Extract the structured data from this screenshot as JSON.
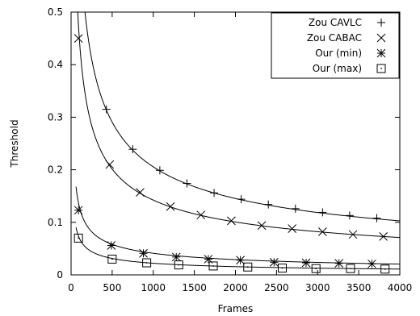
{
  "chart_data": {
    "type": "line",
    "xlabel": "Frames",
    "ylabel": "Threshold",
    "xlim": [
      0,
      4000
    ],
    "ylim": [
      0,
      0.5
    ],
    "x_ticks": [
      "0",
      "500",
      "1000",
      "1500",
      "2000",
      "2500",
      "3000",
      "3500",
      "4000"
    ],
    "y_ticks": [
      "0",
      "0.1",
      "0.2",
      "0.3",
      "0.4",
      "0.5"
    ],
    "x_tick_values": [
      0,
      500,
      1000,
      1500,
      2000,
      2500,
      3000,
      3500,
      4000
    ],
    "y_tick_values": [
      0,
      0.1,
      0.2,
      0.3,
      0.4,
      0.5
    ],
    "grid": false,
    "legend_position": "top-right",
    "series": [
      {
        "name": "Zou CAVLC",
        "marker": "plus",
        "curve": {
          "a": 6.5,
          "b": -0.5
        },
        "points": [
          [
            430,
            0.315
          ],
          [
            750,
            0.239
          ],
          [
            1080,
            0.199
          ],
          [
            1410,
            0.174
          ],
          [
            1740,
            0.156
          ],
          [
            2070,
            0.144
          ],
          [
            2400,
            0.134
          ],
          [
            2730,
            0.126
          ],
          [
            3060,
            0.119
          ],
          [
            3390,
            0.113
          ],
          [
            3720,
            0.108
          ]
        ]
      },
      {
        "name": "Zou CABAC",
        "marker": "cross",
        "curve": {
          "a": 4.5,
          "b": -0.5
        },
        "points": [
          [
            90,
            0.45
          ],
          [
            470,
            0.21
          ],
          [
            840,
            0.157
          ],
          [
            1210,
            0.13
          ],
          [
            1580,
            0.114
          ],
          [
            1950,
            0.103
          ],
          [
            2320,
            0.094
          ],
          [
            2690,
            0.088
          ],
          [
            3060,
            0.082
          ],
          [
            3430,
            0.077
          ],
          [
            3800,
            0.073
          ]
        ]
      },
      {
        "name": "Our (min)",
        "marker": "star",
        "curve": {
          "a": 1.3,
          "b": -0.5
        },
        "points": [
          [
            90,
            0.123
          ],
          [
            490,
            0.056
          ],
          [
            880,
            0.041
          ],
          [
            1280,
            0.034
          ],
          [
            1670,
            0.03
          ],
          [
            2060,
            0.028
          ],
          [
            2470,
            0.024
          ],
          [
            2860,
            0.023
          ],
          [
            3260,
            0.022
          ],
          [
            3660,
            0.021
          ]
        ]
      },
      {
        "name": "Our (max)",
        "marker": "dotted-square",
        "curve": {
          "a": 0.7,
          "b": -0.5
        },
        "points": [
          [
            90,
            0.07
          ],
          [
            500,
            0.03
          ],
          [
            920,
            0.023
          ],
          [
            1310,
            0.019
          ],
          [
            1730,
            0.017
          ],
          [
            2150,
            0.015
          ],
          [
            2570,
            0.013
          ],
          [
            2980,
            0.012
          ],
          [
            3400,
            0.012
          ],
          [
            3820,
            0.011
          ]
        ]
      }
    ]
  }
}
